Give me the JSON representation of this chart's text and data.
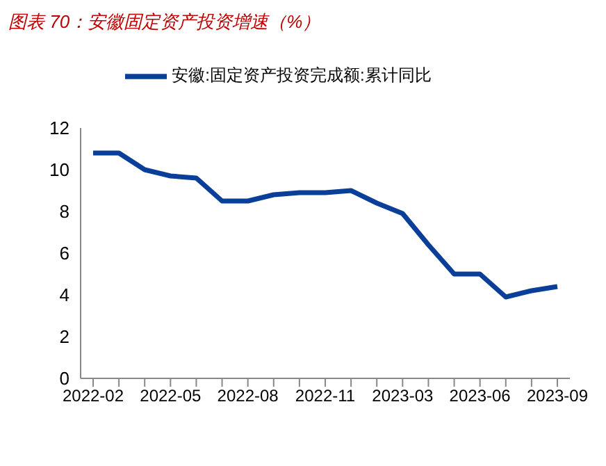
{
  "chart_data": {
    "type": "line",
    "title": "图表 70：安徽固定资产投资增速（%）",
    "categories": [
      "2022-02",
      null,
      null,
      "2022-05",
      null,
      null,
      "2022-08",
      null,
      null,
      "2022-11",
      null,
      null,
      "2023-03",
      null,
      null,
      "2023-06",
      null,
      null,
      "2023-09"
    ],
    "series": [
      {
        "name": "安徽:固定资产投资完成额:累计同比",
        "color": "#0a3f99",
        "values": [
          10.8,
          10.8,
          10.0,
          9.7,
          9.6,
          8.5,
          8.5,
          8.8,
          8.9,
          8.9,
          9.0,
          8.4,
          7.9,
          6.4,
          5.0,
          5.0,
          3.9,
          4.2,
          4.4
        ]
      }
    ],
    "ylim": [
      0,
      12
    ],
    "yticks": [
      0,
      2,
      4,
      6,
      8,
      10,
      12
    ],
    "grid": false,
    "legend": "top",
    "marker": "none",
    "line_style": "solid"
  }
}
